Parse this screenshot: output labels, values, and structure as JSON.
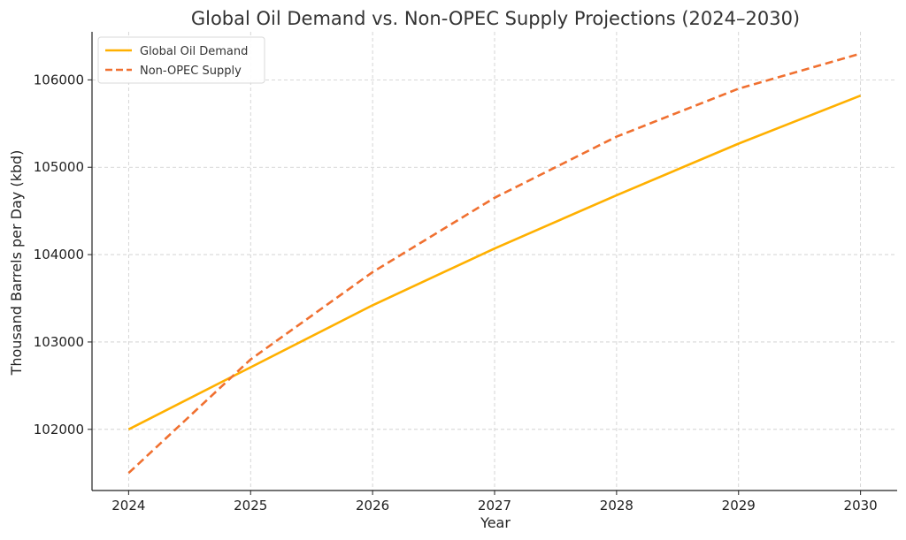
{
  "chart_data": {
    "type": "line",
    "title": "Global Oil Demand vs. Non-OPEC Supply Projections (2024–2030)",
    "xlabel": "Year",
    "ylabel": "Thousand Barrels per Day (kbd)",
    "x": [
      2024,
      2025,
      2026,
      2027,
      2028,
      2029,
      2030
    ],
    "xlim": [
      2023.7,
      2030.3
    ],
    "ylim": [
      101300,
      106550
    ],
    "yticks": [
      102000,
      103000,
      104000,
      105000,
      106000
    ],
    "grid": true,
    "legend_position": "top-left",
    "series": [
      {
        "name": "Global Oil Demand",
        "values": [
          102000,
          102710,
          103420,
          104070,
          104680,
          105270,
          105820
        ],
        "color": "#FFB000",
        "style": "solid"
      },
      {
        "name": "Non-OPEC Supply",
        "values": [
          101500,
          102800,
          103800,
          104650,
          105350,
          105900,
          106300
        ],
        "color": "#F07030",
        "style": "dashed"
      }
    ]
  }
}
